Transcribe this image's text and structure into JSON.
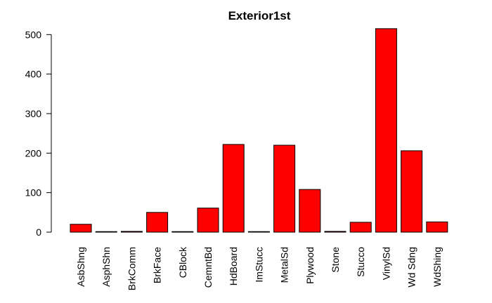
{
  "chart_data": {
    "type": "bar",
    "title": "Exterior1st",
    "xlabel": "",
    "ylabel": "",
    "categories": [
      "AsbShng",
      "AsphShn",
      "BrkComm",
      "BrkFace",
      "CBlock",
      "CemntBd",
      "HdBoard",
      "ImStucc",
      "MetalSd",
      "Plywood",
      "Stone",
      "Stucco",
      "VinylSd",
      "Wd Sdng",
      "WdShing"
    ],
    "values": [
      20,
      1,
      2,
      50,
      1,
      61,
      222,
      1,
      220,
      108,
      2,
      25,
      515,
      206,
      26
    ],
    "ylim": [
      0,
      515
    ],
    "yticks": [
      "0",
      "100",
      "200",
      "300",
      "400",
      "500"
    ],
    "grid": false,
    "bar_color": "#ff0000",
    "bar_border": "#000000"
  }
}
